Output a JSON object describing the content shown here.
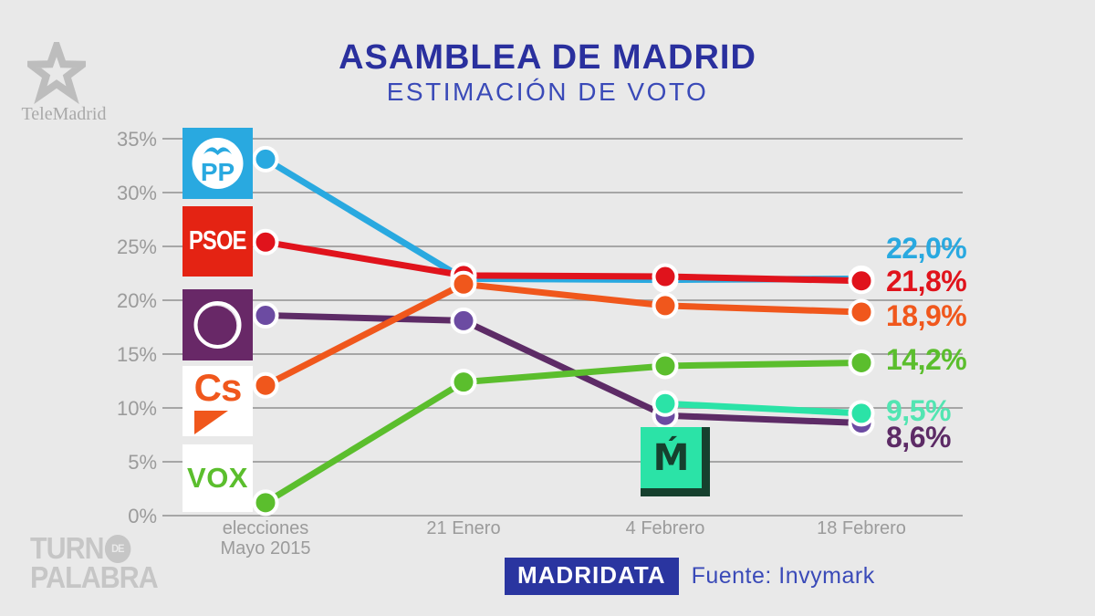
{
  "branding": {
    "telemadrid": "TeleMadrid",
    "watermark_line1": "TURN",
    "watermark_de": "DE",
    "watermark_line2": "PALABRA"
  },
  "header": {
    "title": "ASAMBLEA DE MADRID",
    "subtitle": "ESTIMACIÓN DE VOTO",
    "title_color": "#2A309E",
    "subtitle_color": "#3A4AB8"
  },
  "party_logos": {
    "pp": "PP",
    "psoe": "PSOE",
    "cs": "Cs",
    "vox": "VOX",
    "mas_madrid": "Ḿ"
  },
  "chart_data": {
    "type": "line",
    "title": "ASAMBLEA DE MADRID — ESTIMACIÓN DE VOTO",
    "categories": [
      "elecciones\nMayo 2015",
      "21 Enero",
      "4 Febrero",
      "18 Febrero"
    ],
    "y_ticks": [
      "0%",
      "5%",
      "10%",
      "15%",
      "20%",
      "25%",
      "30%",
      "35%"
    ],
    "ylim": [
      0,
      37
    ],
    "grid": true,
    "legend_position": "left-logo-column",
    "grid_color": "#A6A6A6",
    "axis_text_color": "#9B9B9B",
    "series": [
      {
        "name": "PP",
        "color": "#29A9E0",
        "values": [
          33.1,
          22.0,
          21.9,
          22.0
        ],
        "end_label": "22,0%"
      },
      {
        "name": "PSOE",
        "color": "#E0131C",
        "values": [
          25.4,
          22.3,
          22.2,
          21.8
        ],
        "end_label": "21,8%"
      },
      {
        "name": "Podemos",
        "color": "#5D2B66",
        "dot_color": "#6C4BA2",
        "values": [
          18.6,
          18.1,
          9.3,
          8.6
        ],
        "end_label": "8,6%"
      },
      {
        "name": "Ciudadanos",
        "color": "#F0571C",
        "values": [
          12.1,
          21.5,
          19.5,
          18.9
        ],
        "end_label": "18,9%"
      },
      {
        "name": "VOX",
        "color": "#5BBE2D",
        "values": [
          1.2,
          12.4,
          13.9,
          14.2
        ],
        "end_label": "14,2%"
      },
      {
        "name": "Más Madrid",
        "color": "#2BE3A7",
        "label_color": "#52E5B2",
        "values": [
          null,
          null,
          10.4,
          9.5
        ],
        "end_label": "9,5%"
      }
    ]
  },
  "footer": {
    "program": "MADRIDATA",
    "source": "Fuente: Invymark",
    "badge_color": "#2A35A0",
    "text_color": "#3A4AB8"
  }
}
